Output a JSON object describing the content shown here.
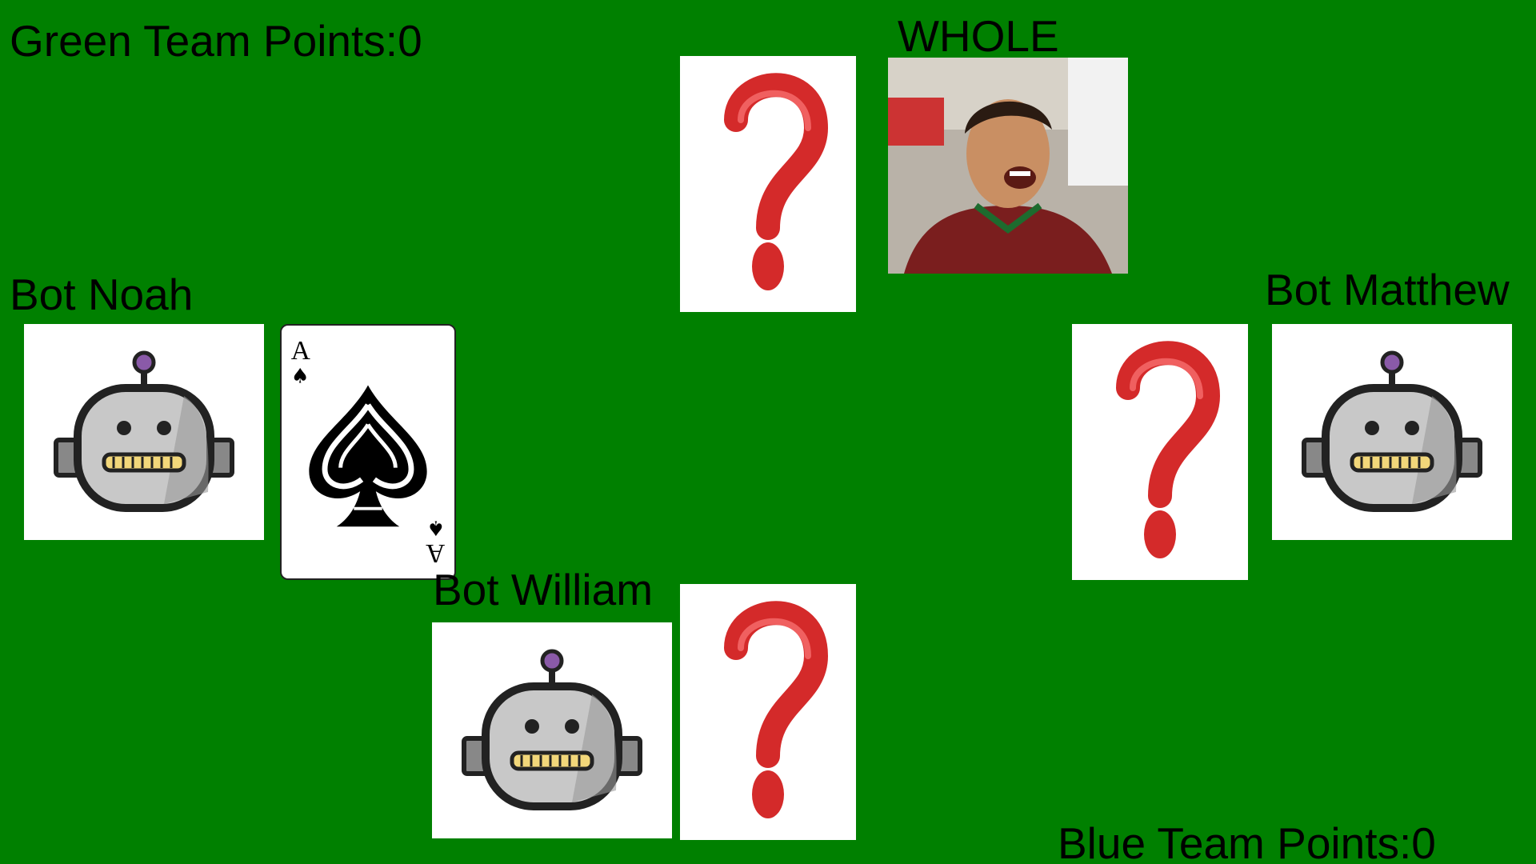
{
  "scoreboard": {
    "green_team": "Green Team Points:0",
    "blue_team": "Blue Team Points:0"
  },
  "players": {
    "north": {
      "name": "WHOLE",
      "card": "face-down",
      "avatar": "player-photo"
    },
    "west": {
      "name": "Bot Noah",
      "card": "A♠",
      "avatar": "robot-icon"
    },
    "east": {
      "name": "Bot Matthew",
      "card": "face-down",
      "avatar": "robot-icon"
    },
    "south": {
      "name": "Bot William",
      "card": "face-down",
      "avatar": "robot-icon"
    }
  },
  "played_card": {
    "rank": "A",
    "suit": "♠"
  },
  "colors": {
    "table": "#008000",
    "question_mark": "#d42a2a",
    "robot_antenna": "#8a5aa8",
    "robot_teeth": "#f2d77a"
  }
}
